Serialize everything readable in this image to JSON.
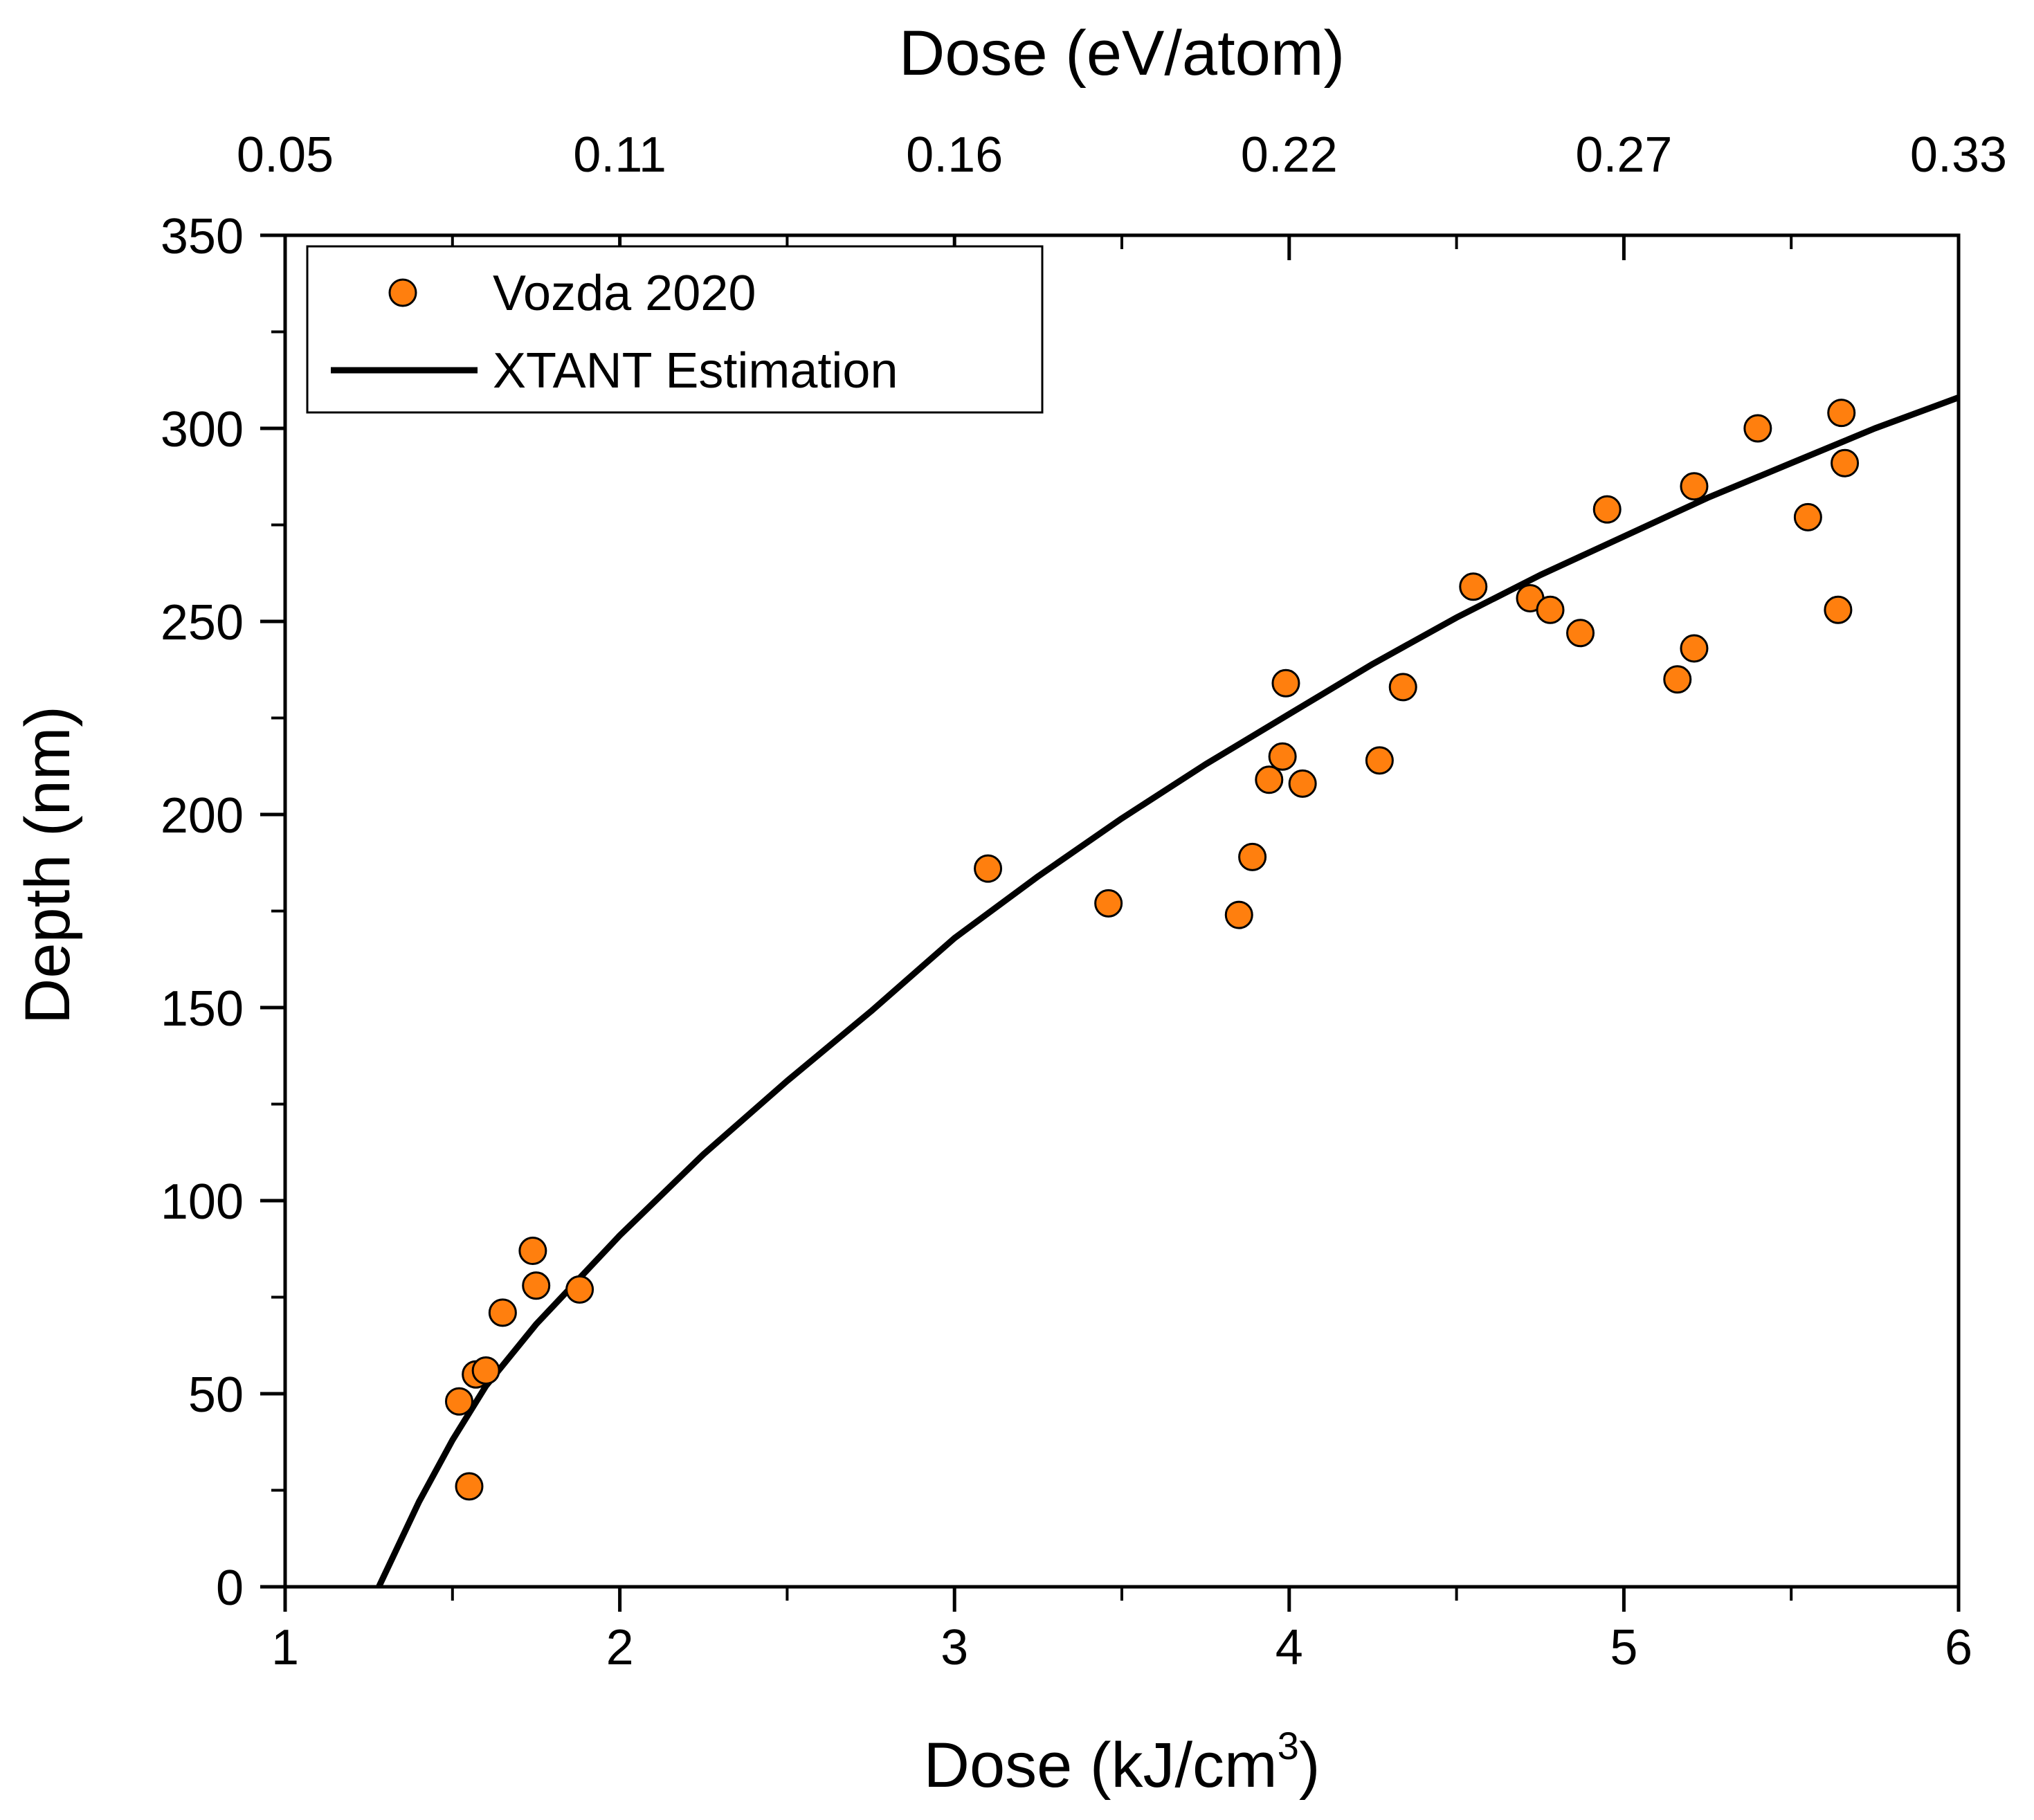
{
  "chart_data": {
    "type": "scatter",
    "xlabel_bottom": "Dose (kJ/cm",
    "xlabel_bottom_sup": "3",
    "xlabel_bottom_close": ")",
    "xlabel_top": "Dose (eV/atom)",
    "ylabel": "Depth (nm)",
    "xlim": [
      1,
      6
    ],
    "ylim": [
      0,
      350
    ],
    "x_ticks": [
      1,
      2,
      3,
      4,
      5,
      6
    ],
    "x_tick_labels": [
      "1",
      "2",
      "3",
      "4",
      "5",
      "6"
    ],
    "y_ticks": [
      0,
      50,
      100,
      150,
      200,
      250,
      300,
      350
    ],
    "y_tick_labels": [
      "0",
      "50",
      "100",
      "150",
      "200",
      "250",
      "300",
      "350"
    ],
    "top_ticks": [
      1,
      2,
      3,
      4,
      5,
      6
    ],
    "top_tick_labels": [
      "0.05",
      "0.11",
      "0.16",
      "0.22",
      "0.27",
      "0.33"
    ],
    "legend": {
      "position": "top-left",
      "entries": [
        {
          "label": "Vozda 2020",
          "kind": "marker"
        },
        {
          "label": "XTANT Estimation",
          "kind": "line"
        }
      ]
    },
    "colors": {
      "marker_fill": "#ff7f0e",
      "marker_edge": "#000000",
      "line": "#000000"
    },
    "series": [
      {
        "name": "Vozda 2020",
        "kind": "scatter",
        "points": [
          [
            1.52,
            48
          ],
          [
            1.55,
            26
          ],
          [
            1.57,
            55
          ],
          [
            1.6,
            56
          ],
          [
            1.65,
            71
          ],
          [
            1.74,
            87
          ],
          [
            1.75,
            78
          ],
          [
            1.88,
            77
          ],
          [
            3.1,
            186
          ],
          [
            3.46,
            177
          ],
          [
            3.85,
            174
          ],
          [
            3.89,
            189
          ],
          [
            3.94,
            209
          ],
          [
            3.98,
            215
          ],
          [
            3.99,
            234
          ],
          [
            4.04,
            208
          ],
          [
            4.27,
            214
          ],
          [
            4.34,
            233
          ],
          [
            4.55,
            259
          ],
          [
            4.72,
            256
          ],
          [
            4.78,
            253
          ],
          [
            4.87,
            247
          ],
          [
            4.95,
            279
          ],
          [
            5.16,
            235
          ],
          [
            5.21,
            285
          ],
          [
            5.21,
            243
          ],
          [
            5.4,
            300
          ],
          [
            5.55,
            277
          ],
          [
            5.64,
            253
          ],
          [
            5.65,
            304
          ],
          [
            5.66,
            291
          ]
        ]
      },
      {
        "name": "XTANT Estimation",
        "kind": "line",
        "points": [
          [
            1.28,
            0
          ],
          [
            1.4,
            22
          ],
          [
            1.5,
            38
          ],
          [
            1.6,
            52
          ],
          [
            1.75,
            68
          ],
          [
            2.0,
            91
          ],
          [
            2.25,
            112
          ],
          [
            2.5,
            131
          ],
          [
            2.75,
            149
          ],
          [
            3.0,
            168
          ],
          [
            3.25,
            184
          ],
          [
            3.5,
            199
          ],
          [
            3.75,
            213
          ],
          [
            4.0,
            226
          ],
          [
            4.25,
            239
          ],
          [
            4.5,
            251
          ],
          [
            4.75,
            262
          ],
          [
            5.0,
            272
          ],
          [
            5.25,
            282
          ],
          [
            5.5,
            291
          ],
          [
            5.75,
            300
          ],
          [
            6.0,
            308
          ]
        ]
      }
    ]
  }
}
